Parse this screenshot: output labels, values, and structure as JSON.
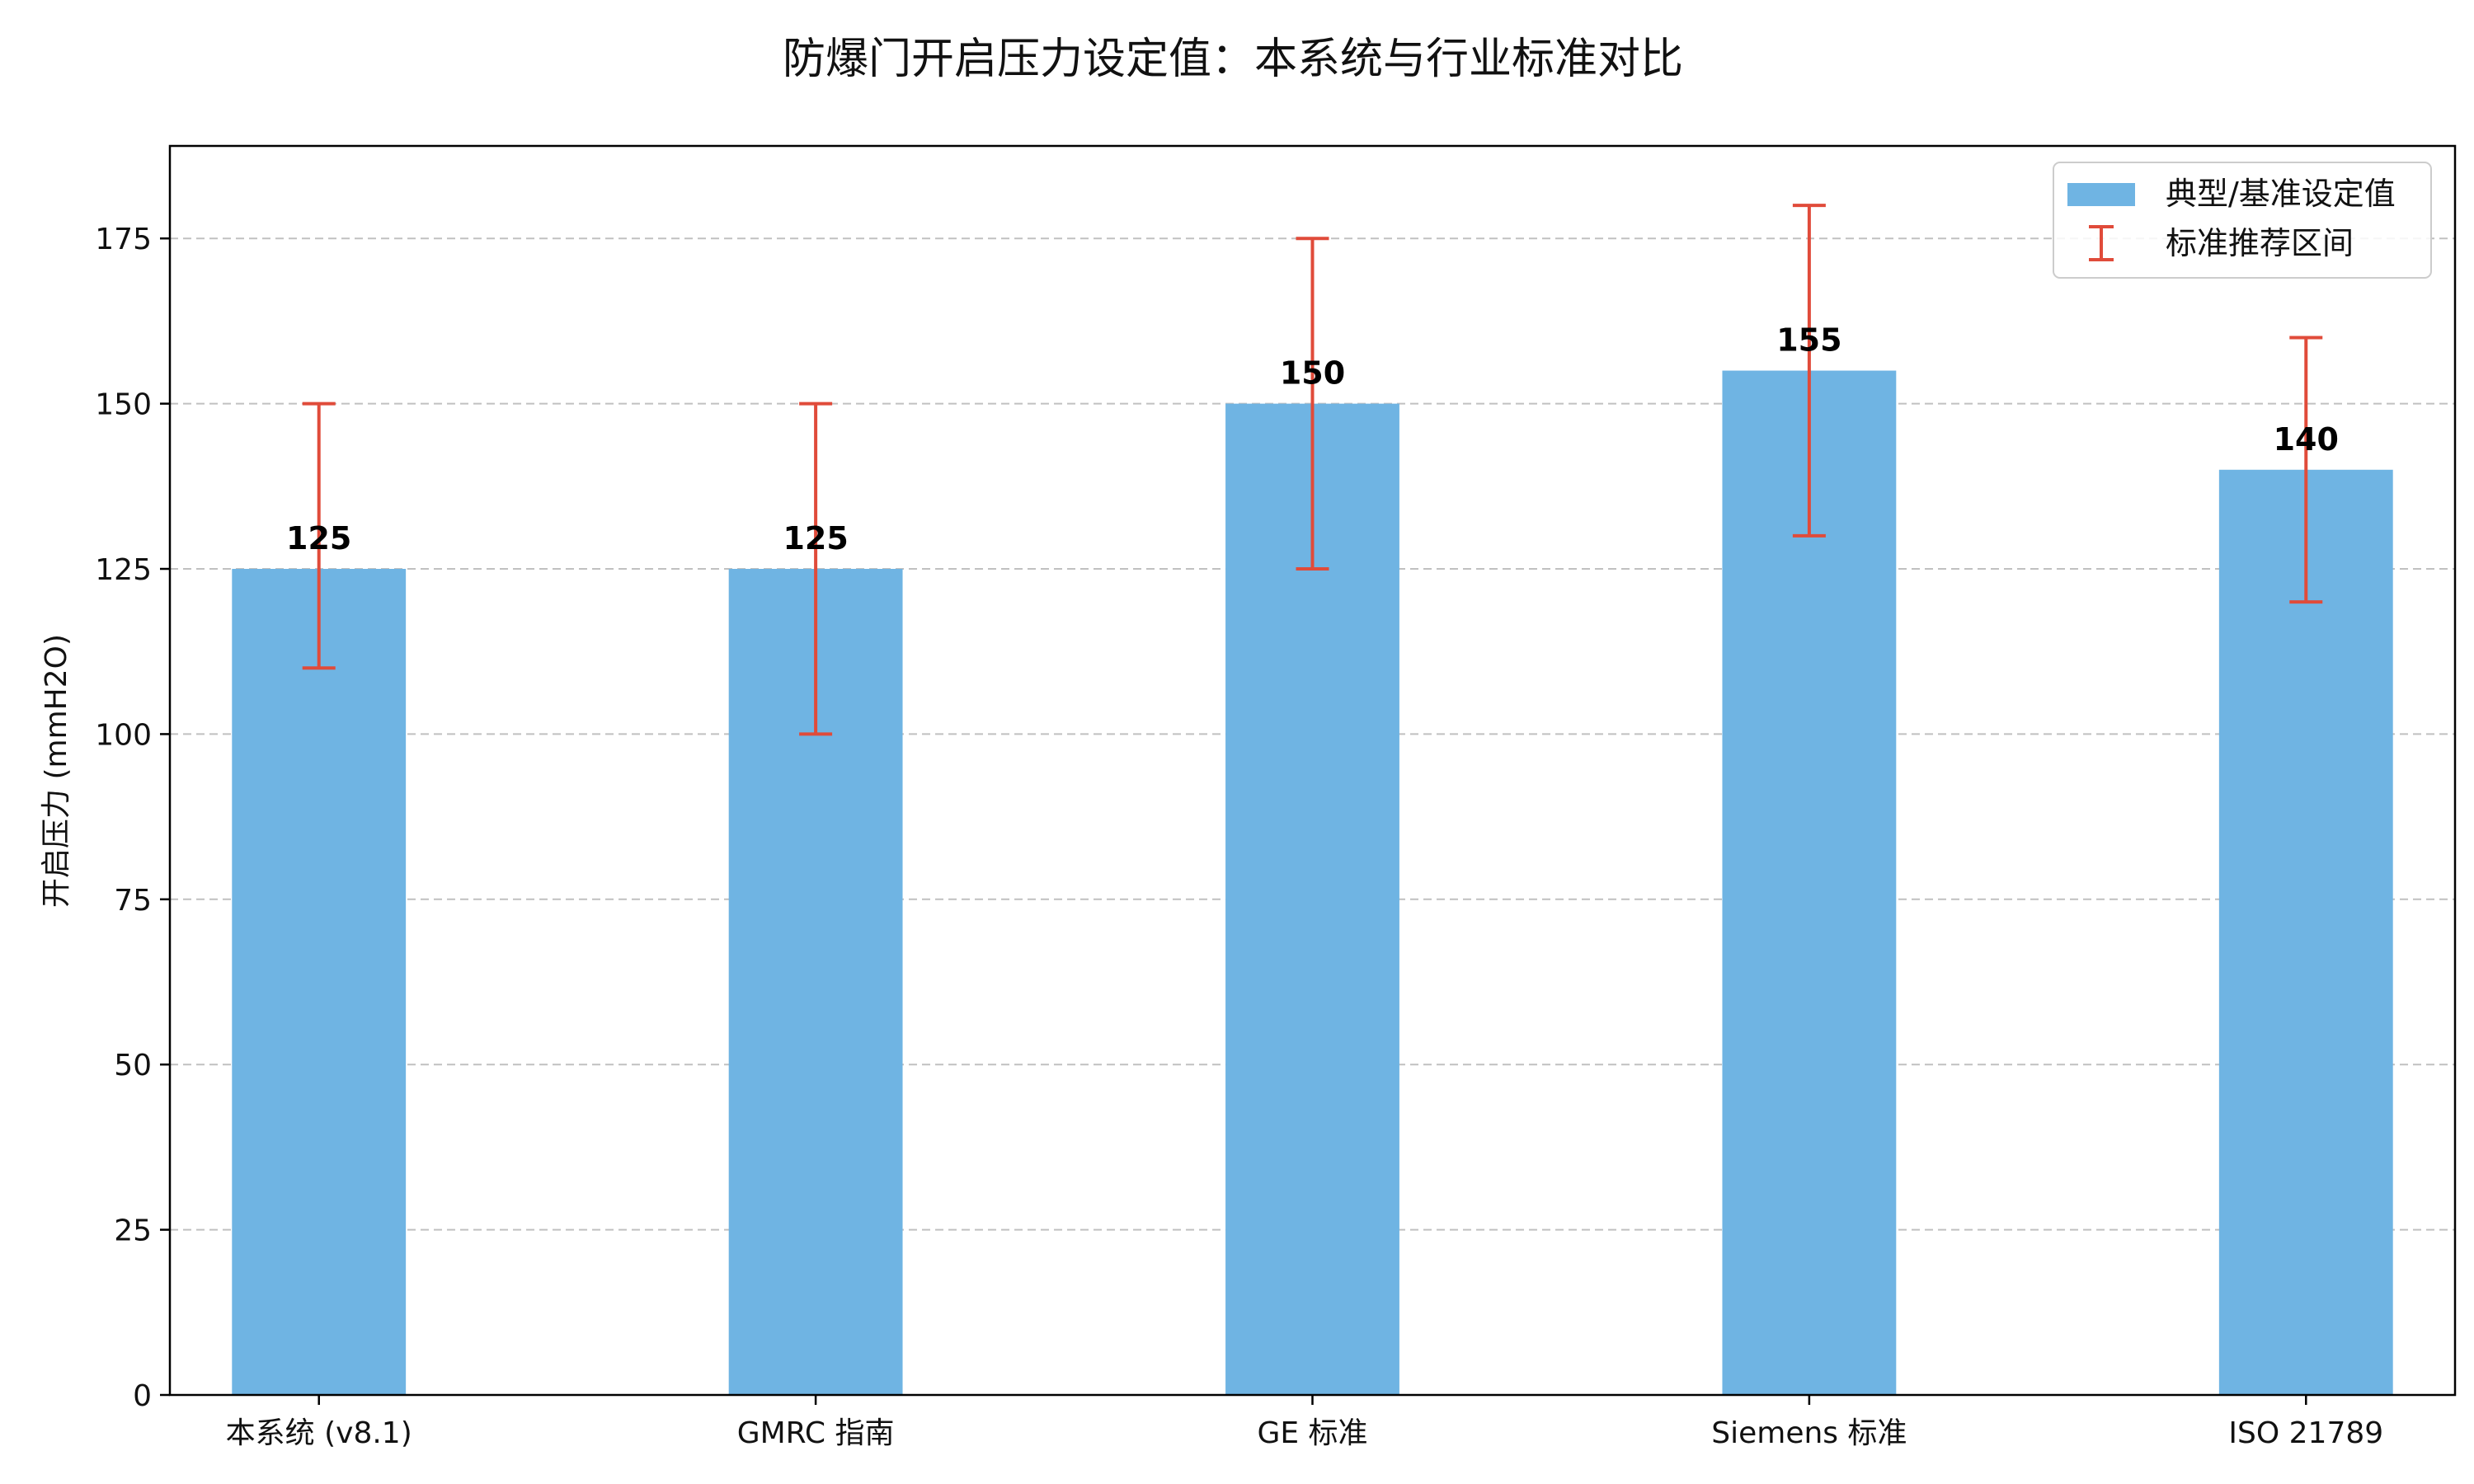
{
  "chart_data": {
    "type": "bar",
    "title": "防爆门开启压力设定值：本系统与行业标准对比",
    "xlabel": "",
    "ylabel": "开启压力 (mmH2O)",
    "categories": [
      "本系统 (v8.1)",
      "GMRC 指南",
      "GE 标准",
      "Siemens 标准",
      "ISO 21789"
    ],
    "series": [
      {
        "name": "典型/基准设定值",
        "values": [
          125,
          125,
          150,
          155,
          140
        ],
        "color": "#6fb4e3"
      }
    ],
    "ranges": {
      "name": "标准推荐区间",
      "low": [
        110,
        100,
        125,
        130,
        120
      ],
      "high": [
        150,
        150,
        175,
        180,
        160
      ],
      "color": "#e04b3a"
    },
    "value_labels": [
      "125",
      "125",
      "150",
      "155",
      "140"
    ],
    "ylim": [
      0,
      189
    ],
    "yticks": [
      0,
      25,
      50,
      75,
      100,
      125,
      150,
      175
    ],
    "grid": "y-dashed",
    "legend_position": "top-right"
  }
}
